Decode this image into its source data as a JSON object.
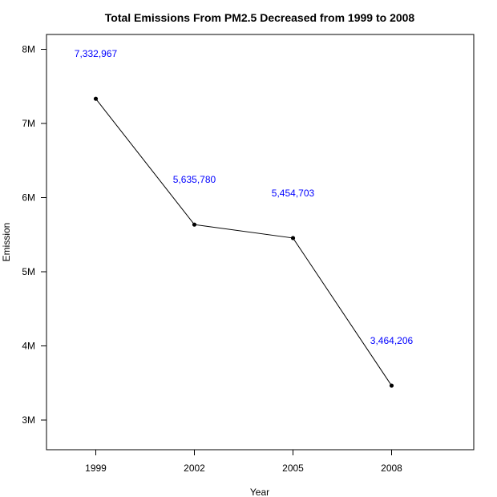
{
  "chart_data": {
    "type": "line",
    "title": "Total Emissions From PM2.5 Decreased from 1999 to 2008",
    "xlabel": "Year",
    "ylabel": "Emission",
    "x": [
      1999,
      2002,
      2005,
      2008
    ],
    "x_tick_labels": [
      "1999",
      "2002",
      "2005",
      "2008"
    ],
    "y": [
      7332967,
      5635780,
      5454703,
      3464206
    ],
    "data_labels": [
      "7,332,967",
      "5,635,780",
      "5,454,703",
      "3,464,206"
    ],
    "xlim": [
      1997.5,
      2010.5
    ],
    "ylim": [
      2600000,
      8200000
    ],
    "y_ticks": [
      3000000,
      4000000,
      5000000,
      6000000,
      7000000,
      8000000
    ],
    "y_tick_labels": [
      "3M",
      "4M",
      "5M",
      "6M",
      "7M",
      "8M"
    ],
    "label_color": "#0000ff",
    "line_color": "#000000",
    "grid": false,
    "legend": "none"
  }
}
